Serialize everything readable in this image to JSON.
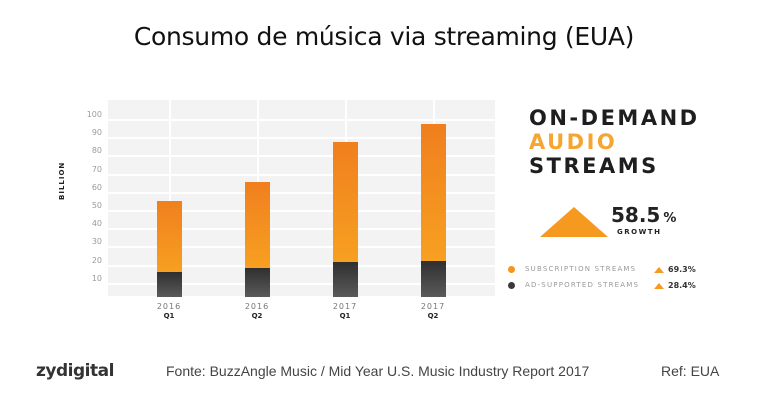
{
  "title": "Consumo de música via streaming (EUA)",
  "chart_data": {
    "type": "bar",
    "stacked": true,
    "title": "On-Demand Audio Streams",
    "xlabel": "",
    "ylabel": "BILLION",
    "ylim": [
      0,
      100
    ],
    "yticks": [
      10,
      20,
      30,
      40,
      50,
      60,
      70,
      80,
      90,
      100
    ],
    "grid": true,
    "categories": [
      "2016 Q1",
      "2016 Q2",
      "2017 Q1",
      "2017 Q2"
    ],
    "category_labels": [
      {
        "year": "2016",
        "quarter": "Q1"
      },
      {
        "year": "2016",
        "quarter": "Q2"
      },
      {
        "year": "2017",
        "quarter": "Q1"
      },
      {
        "year": "2017",
        "quarter": "Q2"
      }
    ],
    "series": [
      {
        "name": "Ad-Supported Streams",
        "color": "#3a3a3a",
        "values": [
          14,
          16,
          19,
          20
        ]
      },
      {
        "name": "Subscription Streams",
        "color": "#f58a1f",
        "values": [
          39,
          47,
          66,
          75
        ]
      }
    ],
    "totals": [
      53,
      63,
      85,
      95
    ],
    "legend_position": "right"
  },
  "panel": {
    "headline_line1": "ON-DEMAND",
    "headline_line2": "AUDIO",
    "headline_line3": "STREAMS",
    "growth_value": "58.5",
    "growth_unit": "%",
    "growth_label": "GROWTH",
    "legend": [
      {
        "label": "SUBSCRIPTION STREAMS",
        "color": "#f7941d",
        "growth": "69.3%"
      },
      {
        "label": "AD-SUPPORTED STREAMS",
        "color": "#3a3a3a",
        "growth": "28.4%"
      }
    ]
  },
  "colors": {
    "accent": "#f7941d",
    "dark": "#222222",
    "chart_bg": "#f3f3f3"
  },
  "footer": {
    "logo": "zydigital",
    "source": "Fonte: BuzzAngle Music  / Mid Year U.S. Music Industry Report 2017",
    "ref": "Ref: EUA"
  }
}
